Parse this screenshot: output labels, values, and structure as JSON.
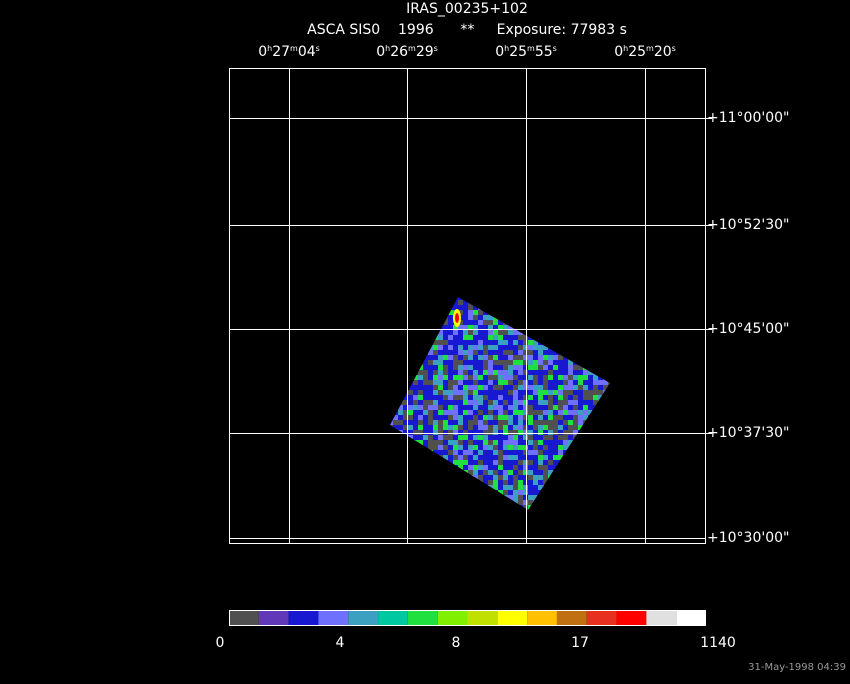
{
  "header": {
    "title": "IRAS_00235+102",
    "subtitle": "ASCA SIS0    1996      **     Exposure: 77983 s"
  },
  "ra_labels": [
    [
      "0",
      "h",
      "27",
      "m",
      "04",
      "s"
    ],
    [
      "0",
      "h",
      "26",
      "m",
      "29",
      "s"
    ],
    [
      "0",
      "h",
      "25",
      "m",
      "55",
      "s"
    ],
    [
      "0",
      "h",
      "25",
      "m",
      "20",
      "s"
    ]
  ],
  "dec_labels": [
    "+11°00'00\"",
    "+10°52'30\"",
    "+10°45'00\"",
    "+10°37'30\"",
    "+10°30'00\""
  ],
  "colorbar": {
    "colors": [
      "#505050",
      "#6038b8",
      "#1818d0",
      "#7070ff",
      "#3ca0c0",
      "#00c8a0",
      "#20e040",
      "#80f000",
      "#c0e000",
      "#ffff00",
      "#ffc000",
      "#c07010",
      "#e83020",
      "#ff0000",
      "#e0e0e0",
      "#ffffff"
    ],
    "labels": [
      "0",
      "4",
      "8",
      "17",
      "1140"
    ]
  },
  "footer": {
    "timestamp": "31-May-1998 04:39"
  }
}
